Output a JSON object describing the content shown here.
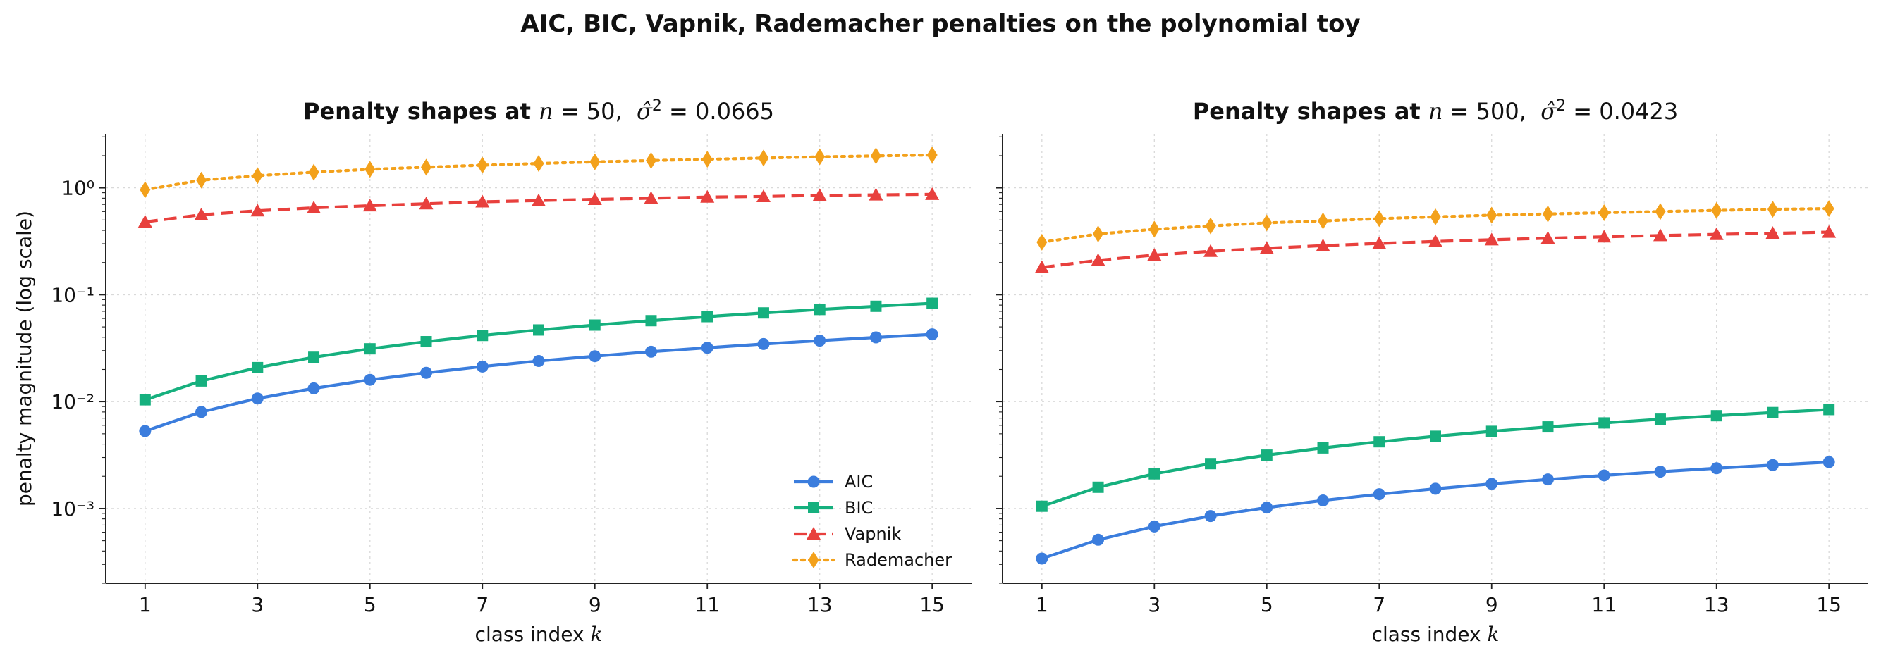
{
  "figure_title": "AIC, BIC, Vapnik, Rademacher penalties on the polynomial toy",
  "chart_data": [
    {
      "type": "line",
      "title": "Penalty shapes at n = 50,  σ̂² = 0.0665",
      "title_prefix": "Penalty shapes at ",
      "title_n": "50",
      "title_sigma": "0.0665",
      "xlabel": "class index k",
      "ylabel": "penalty magnitude (log scale)",
      "yscale": "log",
      "ylim": [
        0.0002,
        3.2
      ],
      "xlim": [
        0.3,
        15.7
      ],
      "grid": true,
      "legend": "lower-right",
      "x": [
        1,
        2,
        3,
        4,
        5,
        6,
        7,
        8,
        9,
        10,
        11,
        12,
        13,
        14,
        15
      ],
      "xticks": [
        1,
        3,
        5,
        7,
        9,
        11,
        13,
        15
      ],
      "series": [
        {
          "name": "AIC",
          "color": "#3b7ddd",
          "marker": "circle",
          "linestyle": "solid",
          "values": [
            0.0053,
            0.008,
            0.0107,
            0.0133,
            0.016,
            0.0186,
            0.0213,
            0.024,
            0.0266,
            0.0293,
            0.0319,
            0.0346,
            0.0372,
            0.0399,
            0.0426
          ]
        },
        {
          "name": "BIC",
          "color": "#16b07e",
          "marker": "square",
          "linestyle": "solid",
          "values": [
            0.0104,
            0.0156,
            0.0208,
            0.026,
            0.0312,
            0.0364,
            0.0416,
            0.0468,
            0.052,
            0.0572,
            0.0624,
            0.0676,
            0.0728,
            0.078,
            0.0832
          ]
        },
        {
          "name": "Vapnik",
          "color": "#e8403d",
          "marker": "triangle",
          "linestyle": "dashed",
          "values": [
            0.48,
            0.56,
            0.61,
            0.65,
            0.68,
            0.71,
            0.74,
            0.76,
            0.78,
            0.8,
            0.82,
            0.83,
            0.85,
            0.86,
            0.87
          ]
        },
        {
          "name": "Rademacher",
          "color": "#f3a11b",
          "marker": "diamond",
          "linestyle": "dotted",
          "values": [
            0.96,
            1.18,
            1.3,
            1.4,
            1.49,
            1.56,
            1.63,
            1.69,
            1.75,
            1.8,
            1.85,
            1.9,
            1.95,
            1.99,
            2.03
          ]
        }
      ]
    },
    {
      "type": "line",
      "title": "Penalty shapes at n = 500,  σ̂² = 0.0423",
      "title_prefix": "Penalty shapes at ",
      "title_n": "500",
      "title_sigma": "0.0423",
      "xlabel": "class index k",
      "ylabel": "",
      "yscale": "log",
      "ylim": [
        0.0002,
        3.2
      ],
      "xlim": [
        0.3,
        15.7
      ],
      "grid": true,
      "x": [
        1,
        2,
        3,
        4,
        5,
        6,
        7,
        8,
        9,
        10,
        11,
        12,
        13,
        14,
        15
      ],
      "xticks": [
        1,
        3,
        5,
        7,
        9,
        11,
        13,
        15
      ],
      "series": [
        {
          "name": "AIC",
          "color": "#3b7ddd",
          "marker": "circle",
          "linestyle": "solid",
          "values": [
            0.00034,
            0.00051,
            0.00068,
            0.00085,
            0.00102,
            0.00119,
            0.00136,
            0.00153,
            0.0017,
            0.00187,
            0.00204,
            0.00221,
            0.00238,
            0.00255,
            0.00272
          ]
        },
        {
          "name": "BIC",
          "color": "#16b07e",
          "marker": "square",
          "linestyle": "solid",
          "values": [
            0.00105,
            0.00158,
            0.00211,
            0.00263,
            0.00316,
            0.00369,
            0.00421,
            0.00474,
            0.00527,
            0.0058,
            0.00632,
            0.00685,
            0.00738,
            0.0079,
            0.00843
          ]
        },
        {
          "name": "Vapnik",
          "color": "#e8403d",
          "marker": "triangle",
          "linestyle": "dashed",
          "values": [
            0.18,
            0.21,
            0.235,
            0.255,
            0.272,
            0.288,
            0.302,
            0.315,
            0.327,
            0.338,
            0.348,
            0.358,
            0.367,
            0.376,
            0.385
          ]
        },
        {
          "name": "Rademacher",
          "color": "#f3a11b",
          "marker": "diamond",
          "linestyle": "dotted",
          "values": [
            0.31,
            0.37,
            0.41,
            0.44,
            0.47,
            0.49,
            0.515,
            0.535,
            0.555,
            0.57,
            0.585,
            0.6,
            0.615,
            0.63,
            0.64
          ]
        }
      ]
    }
  ]
}
